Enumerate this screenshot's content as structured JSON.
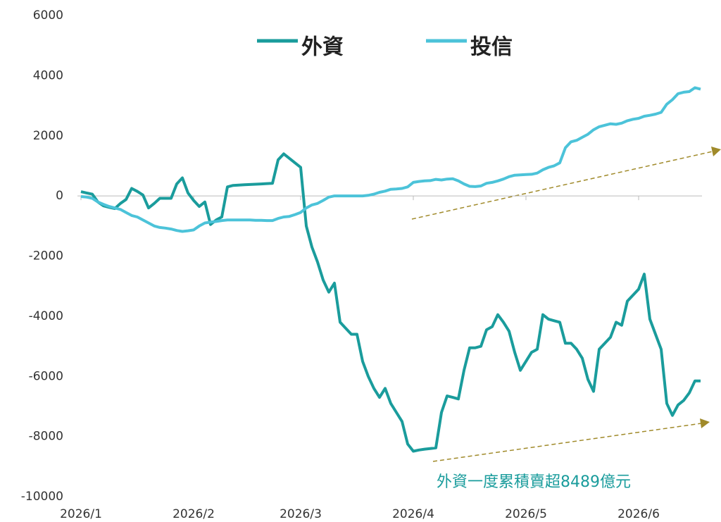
{
  "chart_data": {
    "type": "line",
    "categories": [
      "2026/1",
      null,
      null,
      null,
      null,
      null,
      null,
      null,
      null,
      null,
      null,
      null,
      null,
      null,
      null,
      null,
      null,
      null,
      null,
      null,
      "2026/2",
      null,
      null,
      null,
      null,
      null,
      null,
      null,
      null,
      null,
      null,
      null,
      null,
      null,
      null,
      null,
      null,
      null,
      null,
      "2026/3",
      null,
      null,
      null,
      null,
      null,
      null,
      null,
      null,
      null,
      null,
      null,
      null,
      null,
      null,
      null,
      null,
      null,
      null,
      null,
      "2026/4",
      null,
      null,
      null,
      null,
      null,
      null,
      null,
      null,
      null,
      null,
      null,
      null,
      null,
      null,
      null,
      null,
      null,
      null,
      null,
      "2026/5",
      null,
      null,
      null,
      null,
      null,
      null,
      null,
      null,
      null,
      null,
      null,
      null,
      null,
      null,
      null,
      null,
      null,
      null,
      null,
      "2026/6",
      null,
      null,
      null,
      null,
      null,
      null,
      null,
      null,
      null,
      null,
      null
    ],
    "series": [
      {
        "name": "外資",
        "color": "#1a9c9c",
        "values": [
          140,
          100,
          60,
          -200,
          -330,
          -380,
          -420,
          -250,
          -120,
          250,
          150,
          30,
          -400,
          -250,
          -80,
          -80,
          -80,
          400,
          600,
          100,
          -150,
          -350,
          -200,
          -950,
          -800,
          -700,
          300,
          350,
          360,
          370,
          380,
          390,
          400,
          410,
          420,
          1200,
          1400,
          1250,
          1100,
          950,
          -1000,
          -1700,
          -2200,
          -2800,
          -3200,
          -2900,
          -4200,
          -4400,
          -4600,
          -4600,
          -5500,
          -6000,
          -6400,
          -6700,
          -6400,
          -6900,
          -7200,
          -7500,
          -8250,
          -8489,
          -8450,
          -8420,
          -8400,
          -8380,
          -7200,
          -6650,
          -6700,
          -6750,
          -5800,
          -5050,
          -5050,
          -5000,
          -4450,
          -4350,
          -3950,
          -4200,
          -4500,
          -5200,
          -5800,
          -5500,
          -5200,
          -5100,
          -3950,
          -4100,
          -4150,
          -4200,
          -4900,
          -4900,
          -5100,
          -5400,
          -6100,
          -6500,
          -5100,
          -4900,
          -4700,
          -4200,
          -4300,
          -3500,
          -3300,
          -3100,
          -2600,
          -4100,
          -4600,
          -5100,
          -6900,
          -7300,
          -6950,
          -6800,
          -6550,
          -6150,
          -6150
        ]
      },
      {
        "name": "投信",
        "color": "#4cc3d9",
        "values": [
          -20,
          -40,
          -80,
          -200,
          -280,
          -350,
          -400,
          -450,
          -550,
          -650,
          -700,
          -800,
          -900,
          -1000,
          -1050,
          -1070,
          -1100,
          -1150,
          -1180,
          -1160,
          -1130,
          -1000,
          -900,
          -870,
          -850,
          -820,
          -800,
          -800,
          -800,
          -800,
          -800,
          -810,
          -810,
          -820,
          -820,
          -750,
          -700,
          -680,
          -620,
          -550,
          -400,
          -300,
          -250,
          -150,
          -40,
          0,
          0,
          0,
          0,
          0,
          0,
          20,
          60,
          120,
          160,
          220,
          230,
          250,
          300,
          450,
          480,
          500,
          510,
          550,
          530,
          560,
          570,
          500,
          400,
          320,
          310,
          330,
          420,
          450,
          500,
          560,
          640,
          690,
          700,
          710,
          720,
          760,
          870,
          950,
          1000,
          1100,
          1600,
          1800,
          1850,
          1950,
          2050,
          2200,
          2300,
          2350,
          2400,
          2380,
          2420,
          2500,
          2550,
          2580,
          2650,
          2680,
          2720,
          2780,
          3050,
          3200,
          3400,
          3450,
          3470,
          3600,
          3550
        ]
      }
    ],
    "ylim": [
      -10000,
      6000
    ],
    "yticks": [
      -10000,
      -8000,
      -6000,
      -4000,
      -2000,
      0,
      2000,
      4000,
      6000
    ],
    "grid": false,
    "legend": "top",
    "annotation": "外資一度累積賣超8489億元"
  }
}
